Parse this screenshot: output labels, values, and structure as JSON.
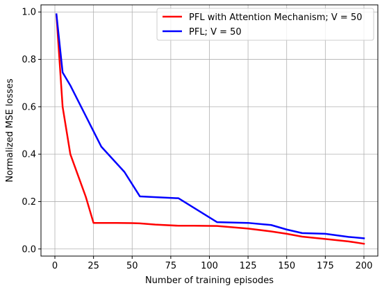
{
  "chart_data": {
    "type": "line",
    "xlabel": "Number of training episodes",
    "ylabel": "Normalized MSE losses",
    "xlim": [
      -9,
      209
    ],
    "ylim": [
      -0.03,
      1.03
    ],
    "xticks": [
      0,
      25,
      50,
      75,
      100,
      125,
      150,
      175,
      200
    ],
    "yticks": [
      0.0,
      0.2,
      0.4,
      0.6,
      0.8,
      1.0
    ],
    "xtick_labels": [
      "0",
      "25",
      "50",
      "75",
      "100",
      "125",
      "150",
      "175",
      "200"
    ],
    "ytick_labels": [
      "0.0",
      "0.2",
      "0.4",
      "0.6",
      "0.8",
      "1.0"
    ],
    "grid": true,
    "legend_position": "top-right",
    "series": [
      {
        "name": "PFL with Attention Mechanism; V = 50",
        "color": "#ff0000",
        "x": [
          1,
          5,
          10,
          15,
          20,
          25,
          30,
          40,
          50,
          55,
          65,
          80,
          90,
          105,
          125,
          140,
          150,
          160,
          175,
          190,
          200
        ],
        "y": [
          0.99,
          0.6,
          0.4,
          0.31,
          0.22,
          0.11,
          0.11,
          0.11,
          0.109,
          0.108,
          0.103,
          0.098,
          0.098,
          0.097,
          0.086,
          0.074,
          0.064,
          0.052,
          0.042,
          0.032,
          0.022
        ]
      },
      {
        "name": "PFL; V = 50",
        "color": "#0000ff",
        "x": [
          1,
          5,
          10,
          30,
          45,
          55,
          80,
          105,
          125,
          140,
          150,
          160,
          175,
          190,
          200
        ],
        "y": [
          0.99,
          0.745,
          0.69,
          0.432,
          0.325,
          0.222,
          0.214,
          0.113,
          0.11,
          0.101,
          0.082,
          0.067,
          0.064,
          0.051,
          0.045
        ]
      }
    ]
  }
}
